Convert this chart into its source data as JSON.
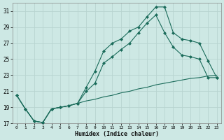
{
  "xlabel": "Humidex (Indice chaleur)",
  "xlim": [
    -0.5,
    23.5
  ],
  "ylim": [
    17,
    32
  ],
  "yticks": [
    17,
    19,
    21,
    23,
    25,
    27,
    29,
    31
  ],
  "xticks": [
    0,
    1,
    2,
    3,
    4,
    5,
    6,
    7,
    8,
    9,
    10,
    11,
    12,
    13,
    14,
    15,
    16,
    17,
    18,
    19,
    20,
    21,
    22,
    23
  ],
  "bg_color": "#cde8e4",
  "grid_color": "#b8d4d0",
  "line_color": "#1a6b5a",
  "line1_x": [
    0,
    1,
    2,
    3,
    4,
    5,
    6,
    7,
    8,
    9,
    10,
    11,
    12,
    13,
    14,
    15,
    16,
    17,
    18,
    19,
    20,
    21,
    22,
    23
  ],
  "line1_y": [
    20.5,
    18.8,
    17.3,
    17.1,
    18.8,
    19.0,
    19.2,
    19.5,
    19.8,
    20.0,
    20.3,
    20.5,
    20.8,
    21.0,
    21.3,
    21.5,
    21.8,
    22.0,
    22.2,
    22.4,
    22.6,
    22.7,
    22.9,
    23.0
  ],
  "line2_x": [
    0,
    1,
    2,
    3,
    4,
    5,
    6,
    7,
    8,
    9,
    10,
    11,
    12,
    13,
    14,
    15,
    16,
    17,
    18,
    19,
    20,
    21,
    22,
    23
  ],
  "line2_y": [
    20.5,
    18.8,
    17.3,
    17.1,
    18.8,
    19.0,
    19.2,
    19.5,
    21.5,
    23.5,
    26.0,
    27.0,
    27.5,
    28.5,
    29.0,
    30.3,
    31.5,
    31.5,
    28.3,
    27.5,
    27.3,
    27.0,
    24.8,
    22.7
  ],
  "line3_x": [
    0,
    1,
    2,
    3,
    4,
    5,
    6,
    7,
    8,
    9,
    10,
    11,
    12,
    13,
    14,
    15,
    16,
    17,
    18,
    19,
    20,
    21,
    22,
    23
  ],
  "line3_y": [
    20.5,
    18.8,
    17.3,
    17.1,
    18.8,
    19.0,
    19.2,
    19.5,
    21.0,
    22.0,
    24.5,
    25.3,
    26.2,
    27.0,
    28.3,
    29.5,
    30.5,
    28.3,
    26.5,
    25.5,
    25.3,
    25.0,
    22.7,
    22.7
  ]
}
